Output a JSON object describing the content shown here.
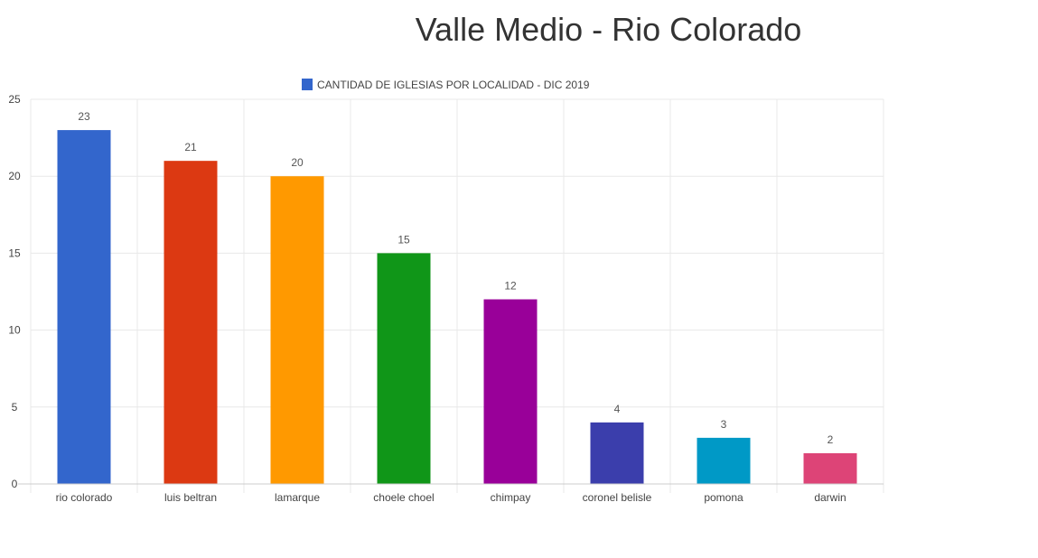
{
  "chart_data": {
    "type": "bar",
    "title": "Valle Medio - Rio Colorado",
    "legend": {
      "label": "CANTIDAD DE IGLESIAS POR LOCALIDAD - DIC 2019",
      "color": "#3366cc",
      "position": "top"
    },
    "categories": [
      "rio colorado",
      "luis beltran",
      "lamarque",
      "choele choel",
      "chimpay",
      "coronel belisle",
      "pomona",
      "darwin"
    ],
    "series": [
      {
        "name": "CANTIDAD DE IGLESIAS POR LOCALIDAD - DIC 2019",
        "values": [
          23,
          21,
          20,
          15,
          12,
          4,
          3,
          2
        ]
      }
    ],
    "bar_colors": [
      "#3366cc",
      "#dc3912",
      "#ff9900",
      "#109618",
      "#990099",
      "#3b3eac",
      "#0099c6",
      "#dd4477"
    ],
    "yticks": [
      0,
      5,
      10,
      15,
      20,
      25
    ],
    "ylim": [
      0,
      25
    ],
    "grid": true,
    "xlabel": "",
    "ylabel": ""
  }
}
